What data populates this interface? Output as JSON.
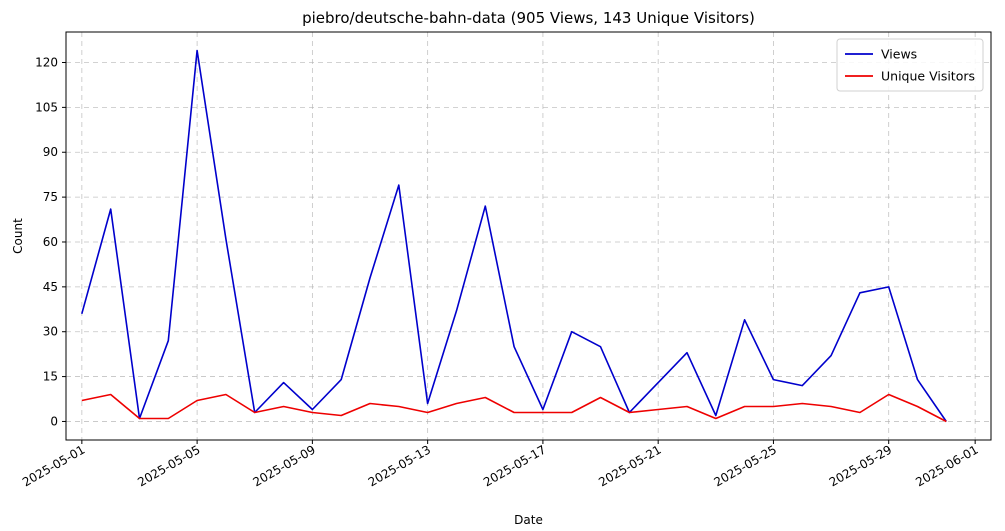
{
  "chart_data": {
    "type": "line",
    "title": "piebro/deutsche-bahn-data (905 Views, 143 Unique Visitors)",
    "xlabel": "Date",
    "ylabel": "Count",
    "x": [
      "2025-05-01",
      "2025-05-02",
      "2025-05-03",
      "2025-05-04",
      "2025-05-05",
      "2025-05-06",
      "2025-05-07",
      "2025-05-08",
      "2025-05-09",
      "2025-05-10",
      "2025-05-11",
      "2025-05-12",
      "2025-05-13",
      "2025-05-14",
      "2025-05-15",
      "2025-05-16",
      "2025-05-17",
      "2025-05-18",
      "2025-05-19",
      "2025-05-20",
      "2025-05-21",
      "2025-05-22",
      "2025-05-23",
      "2025-05-24",
      "2025-05-25",
      "2025-05-26",
      "2025-05-27",
      "2025-05-28",
      "2025-05-29",
      "2025-05-30",
      "2025-05-31"
    ],
    "series": [
      {
        "name": "Views",
        "color": "#0000cc",
        "values": [
          36,
          71,
          1,
          27,
          124,
          61,
          3,
          13,
          4,
          14,
          48,
          79,
          6,
          37,
          72,
          25,
          4,
          30,
          25,
          3,
          13,
          23,
          2,
          34,
          14,
          12,
          22,
          43,
          45,
          14,
          0
        ]
      },
      {
        "name": "Unique Visitors",
        "color": "#ee0000",
        "values": [
          7,
          9,
          1,
          1,
          7,
          9,
          3,
          5,
          3,
          2,
          6,
          5,
          3,
          6,
          8,
          3,
          3,
          3,
          8,
          3,
          4,
          5,
          1,
          5,
          5,
          6,
          5,
          3,
          9,
          5,
          0
        ]
      }
    ],
    "xticks": [
      "2025-05-01",
      "2025-05-05",
      "2025-05-09",
      "2025-05-13",
      "2025-05-17",
      "2025-05-21",
      "2025-05-25",
      "2025-05-29",
      "2025-06-01"
    ],
    "yticks": [
      0,
      15,
      30,
      45,
      60,
      75,
      90,
      105,
      120
    ],
    "xlim": [
      "2025-04-30",
      "2025-06-01"
    ],
    "ylim": [
      -6.2,
      130.2
    ],
    "grid": true,
    "legend_position": "top-right"
  }
}
